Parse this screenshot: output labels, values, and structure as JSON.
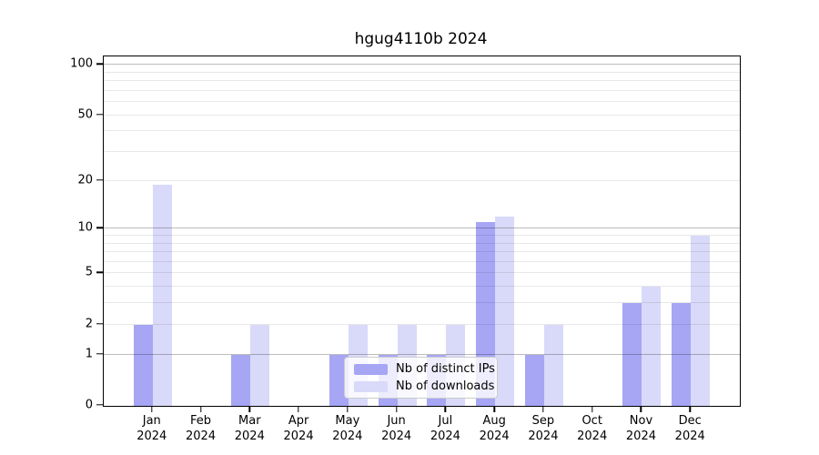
{
  "chart_data": {
    "type": "bar",
    "title": "hgug4110b 2024",
    "categories": [
      {
        "month": "Jan",
        "year": "2024"
      },
      {
        "month": "Feb",
        "year": "2024"
      },
      {
        "month": "Mar",
        "year": "2024"
      },
      {
        "month": "Apr",
        "year": "2024"
      },
      {
        "month": "May",
        "year": "2024"
      },
      {
        "month": "Jun",
        "year": "2024"
      },
      {
        "month": "Jul",
        "year": "2024"
      },
      {
        "month": "Aug",
        "year": "2024"
      },
      {
        "month": "Sep",
        "year": "2024"
      },
      {
        "month": "Oct",
        "year": "2024"
      },
      {
        "month": "Nov",
        "year": "2024"
      },
      {
        "month": "Dec",
        "year": "2024"
      }
    ],
    "series": [
      {
        "name": "Nb of distinct IPs",
        "color": "#a6a6f5",
        "values": [
          2,
          0,
          1,
          0,
          1,
          1,
          1,
          11,
          1,
          0,
          3,
          3
        ]
      },
      {
        "name": "Nb of downloads",
        "color": "#d9d9f9",
        "values": [
          19,
          0,
          2,
          0,
          2,
          2,
          2,
          12,
          2,
          0,
          4,
          9
        ]
      }
    ],
    "yscale": "log1p",
    "ylim": [
      0,
      112
    ],
    "yticks": [
      0,
      1,
      2,
      5,
      10,
      20,
      50,
      100
    ],
    "major_gridlines": [
      1,
      10,
      100
    ],
    "minor_gridlines": [
      3,
      4,
      6,
      7,
      8,
      9,
      30,
      40,
      60,
      70,
      80,
      90
    ],
    "grid": "horizontal, drawn above bars",
    "legend_position": "lower center inside plot",
    "axis_color": "#000000",
    "background_color": "#ffffff"
  }
}
